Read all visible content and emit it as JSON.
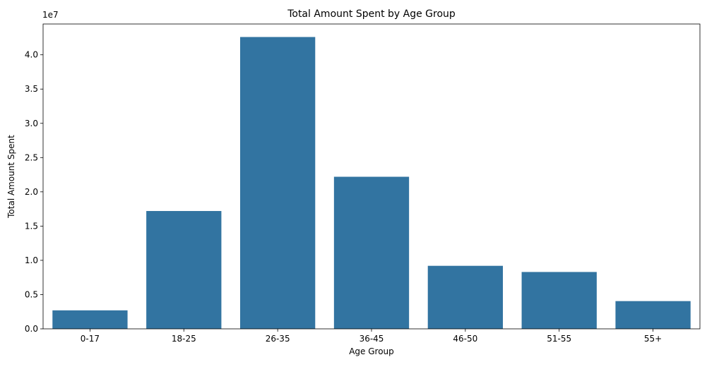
{
  "chart_data": {
    "type": "bar",
    "title": "Total Amount Spent by Age Group",
    "xlabel": "Age Group",
    "ylabel": "Total Amount Spent",
    "y_offset_label": "1e7",
    "y_scale": 10000000,
    "categories": [
      "0-17",
      "18-25",
      "26-35",
      "36-45",
      "46-50",
      "51-55",
      "55+"
    ],
    "values": [
      2700000,
      17200000,
      42600000,
      22200000,
      9200000,
      8300000,
      4050000
    ],
    "ylim": [
      0,
      44500000
    ],
    "yticks": [
      0,
      5000000,
      10000000,
      15000000,
      20000000,
      25000000,
      30000000,
      35000000,
      40000000
    ],
    "ytick_labels": [
      "0.0",
      "0.5",
      "1.0",
      "1.5",
      "2.0",
      "2.5",
      "3.0",
      "3.5",
      "4.0"
    ],
    "grid": false,
    "bar_color": "#3274a1"
  }
}
